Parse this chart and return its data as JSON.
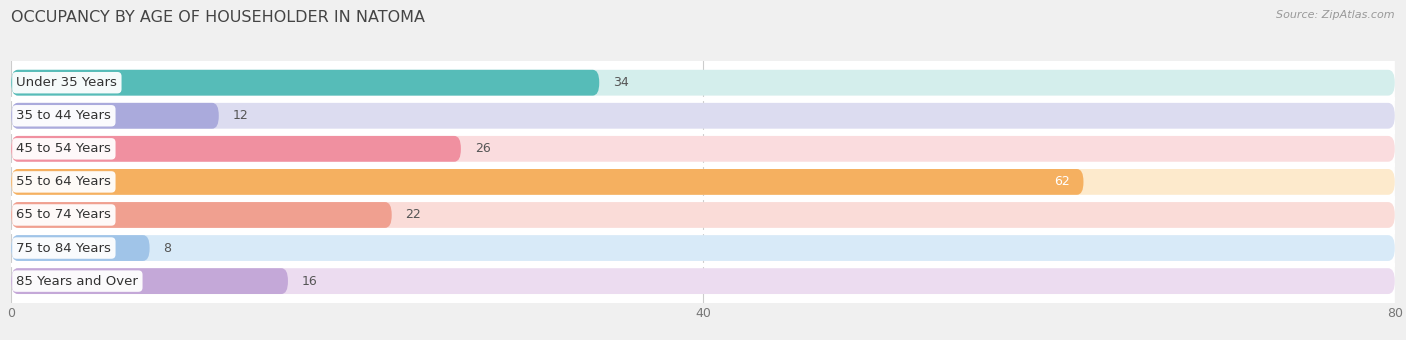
{
  "title": "OCCUPANCY BY AGE OF HOUSEHOLDER IN NATOMA",
  "source": "Source: ZipAtlas.com",
  "categories": [
    "Under 35 Years",
    "35 to 44 Years",
    "45 to 54 Years",
    "55 to 64 Years",
    "65 to 74 Years",
    "75 to 84 Years",
    "85 Years and Over"
  ],
  "values": [
    34,
    12,
    26,
    62,
    22,
    8,
    16
  ],
  "bar_colors": [
    "#56bcb8",
    "#aaaadc",
    "#f090a0",
    "#f5b060",
    "#f0a090",
    "#a0c4e8",
    "#c4a8d8"
  ],
  "bar_bg_colors": [
    "#d4eeec",
    "#dcdcf0",
    "#fadcde",
    "#fdeacc",
    "#fadcd8",
    "#d8eaf8",
    "#ecdcf0"
  ],
  "xlim": [
    0,
    80
  ],
  "xticks": [
    0,
    40,
    80
  ],
  "title_fontsize": 11.5,
  "label_fontsize": 9.5,
  "value_fontsize": 9,
  "background_color": "#ffffff",
  "figure_bg_color": "#f0f0f0"
}
